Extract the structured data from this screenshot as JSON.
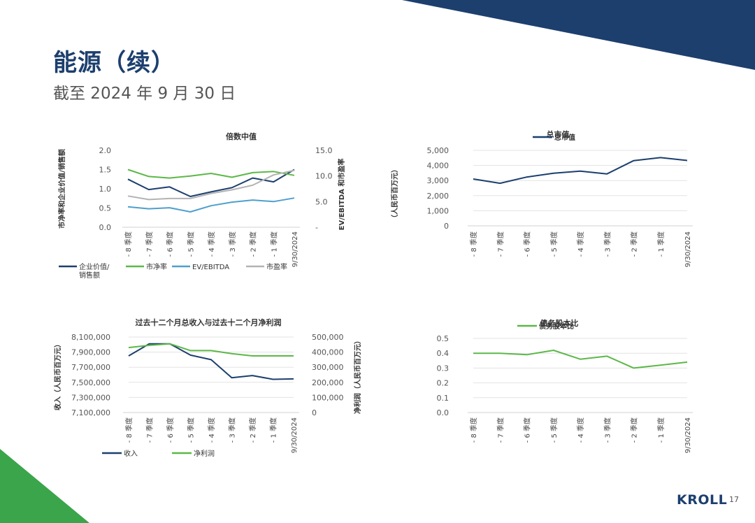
{
  "slide": {
    "title": "能源（续）",
    "subtitle": "截至 2024 年 9 月 30 日",
    "logo": "KROLL",
    "page_number": "17"
  },
  "colors": {
    "dark_blue": "#1c3f6e",
    "green": "#5cb848",
    "light_blue": "#4f9fcd",
    "gray": "#b3b3b3",
    "accent_green": "#3aa54a"
  },
  "chart_data": [
    {
      "id": "multiples",
      "type": "line",
      "title": "倍数中值",
      "ylabel": "市净率和企业价值/销售额",
      "y2label": "EV/EBITDA 和市盈率",
      "categories": [
        "- 8 季度",
        "- 7 季度",
        "- 6 季度",
        "- 5 季度",
        "- 4 季度",
        "- 3 季度",
        "- 2 季度",
        "- 1 季度",
        "9/30/2024"
      ],
      "ylim": [
        0,
        2.0
      ],
      "yticks": [
        "0.0",
        "0.5",
        "1.0",
        "1.5",
        "2.0"
      ],
      "y2lim": [
        0,
        15
      ],
      "y2ticks": [
        "-",
        "5.0",
        "10.0",
        "15.0"
      ],
      "series": [
        {
          "name": "企业价值/销售额",
          "axis": "left",
          "color": "#1c3f6e",
          "values": [
            1.25,
            0.98,
            1.05,
            0.8,
            0.92,
            1.03,
            1.28,
            1.18,
            1.5
          ]
        },
        {
          "name": "市净率",
          "axis": "left",
          "color": "#5cb848",
          "values": [
            1.5,
            1.32,
            1.28,
            1.33,
            1.4,
            1.3,
            1.42,
            1.45,
            1.35
          ]
        },
        {
          "name": "EV/EBITDA",
          "axis": "right",
          "color": "#4f9fcd",
          "values": [
            4.0,
            3.6,
            3.8,
            3.0,
            4.2,
            4.9,
            5.3,
            5.0,
            5.7
          ]
        },
        {
          "name": "市盈率",
          "axis": "right",
          "color": "#b3b3b3",
          "values": [
            6.1,
            5.4,
            5.6,
            5.6,
            6.6,
            7.3,
            8.2,
            10.2,
            11.1
          ]
        }
      ],
      "legend": [
        {
          "label_lines": [
            "企业价值/",
            "销售额"
          ],
          "color": "#1c3f6e"
        },
        {
          "label_lines": [
            "市净率"
          ],
          "color": "#5cb848"
        },
        {
          "label_lines": [
            "EV/EBITDA"
          ],
          "color": "#4f9fcd"
        },
        {
          "label_lines": [
            "市盈率"
          ],
          "color": "#b3b3b3"
        }
      ]
    },
    {
      "id": "market_cap",
      "type": "line",
      "title": "总市值",
      "ylabel": "（人民币百万元）",
      "categories": [
        "- 8 季度",
        "- 7 季度",
        "- 6 季度",
        "- 5 季度",
        "- 4 季度",
        "- 3 季度",
        "- 2 季度",
        "- 1 季度",
        "9/30/2024"
      ],
      "ylim": [
        0,
        5000
      ],
      "yticks": [
        "0",
        "1,000",
        "2,000",
        "3,000",
        "4,000",
        "5,000"
      ],
      "series": [
        {
          "name": "总市值",
          "axis": "left",
          "color": "#1c3f6e",
          "values": [
            3100,
            2820,
            3230,
            3480,
            3620,
            3440,
            4320,
            4520,
            4330
          ]
        }
      ],
      "legend": [
        {
          "label_lines": [
            "总市值"
          ],
          "color": "#1c3f6e"
        }
      ]
    },
    {
      "id": "revenue_net_income",
      "type": "line",
      "title": "过去十二个月总收入与过去十二个月净利润",
      "ylabel": "收入（人民币百万元）",
      "y2label": "净利润（人民币百万元）",
      "categories": [
        "- 8 季度",
        "- 7 季度",
        "- 6 季度",
        "- 5 季度",
        "- 4 季度",
        "- 3 季度",
        "- 2 季度",
        "- 1 季度",
        "9/30/2024"
      ],
      "ylim": [
        7100000,
        8100000
      ],
      "yticks": [
        "7,100,000",
        "7,300,000",
        "7,500,000",
        "7,700,000",
        "7,900,000",
        "8,100,000"
      ],
      "y2lim": [
        0,
        500000
      ],
      "y2ticks": [
        "0",
        "100,000",
        "200,000",
        "300,000",
        "400,000",
        "500,000"
      ],
      "series": [
        {
          "name": "收入",
          "axis": "left",
          "color": "#1c3f6e",
          "values": [
            7850000,
            8010000,
            8010000,
            7860000,
            7800000,
            7560000,
            7590000,
            7540000,
            7545000
          ]
        },
        {
          "name": "净利润",
          "axis": "right",
          "color": "#5cb848",
          "values": [
            430000,
            445000,
            455000,
            410000,
            410000,
            390000,
            375000,
            375000,
            375000
          ]
        }
      ],
      "legend": [
        {
          "label_lines": [
            "收入"
          ],
          "color": "#1c3f6e"
        },
        {
          "label_lines": [
            "净利润"
          ],
          "color": "#5cb848"
        }
      ]
    },
    {
      "id": "debt_equity",
      "type": "line",
      "title": "债务股本比",
      "ylabel": "",
      "categories": [
        "- 8 季度",
        "- 7 季度",
        "- 6 季度",
        "- 5 季度",
        "- 4 季度",
        "- 3 季度",
        "- 2 季度",
        "- 1 季度",
        "9/30/2024"
      ],
      "ylim": [
        0,
        0.5
      ],
      "yticks": [
        "0.0",
        "0.1",
        "0.2",
        "0.3",
        "0.4",
        "0.5"
      ],
      "series": [
        {
          "name": "债务股本比",
          "axis": "left",
          "color": "#5cb848",
          "values": [
            0.4,
            0.4,
            0.39,
            0.42,
            0.36,
            0.38,
            0.3,
            0.32,
            0.34
          ]
        }
      ],
      "legend": [
        {
          "label_lines": [
            "债务股本比"
          ],
          "color": "#5cb848"
        }
      ]
    }
  ]
}
